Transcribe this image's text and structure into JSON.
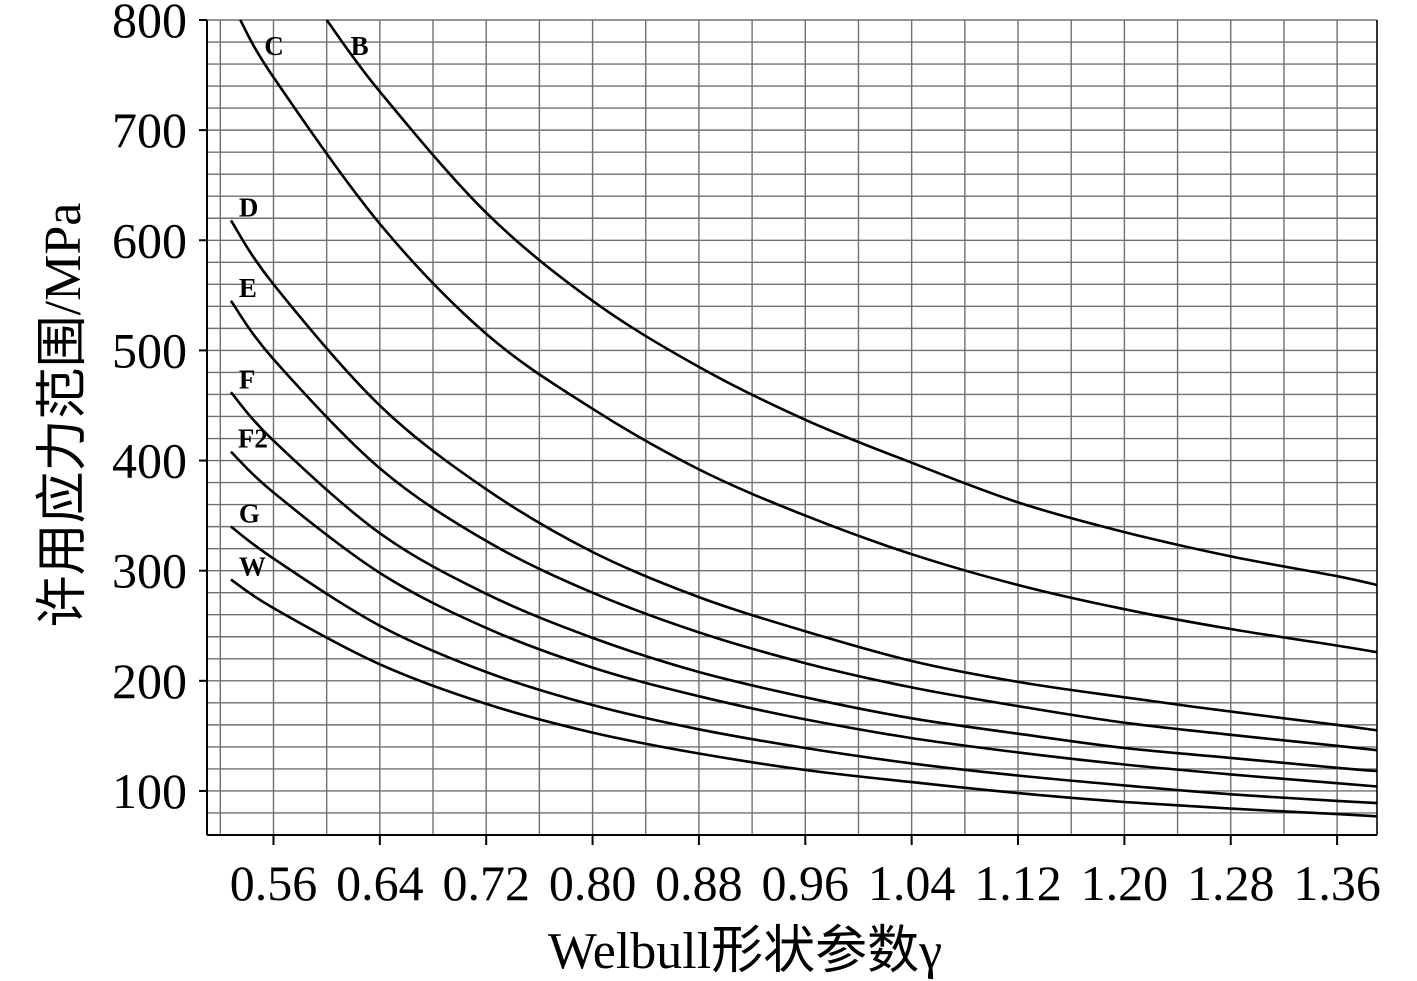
{
  "chart_data": {
    "type": "line",
    "xlabel": "Welbull形状参数γ",
    "ylabel": "许用应力范围/MPa",
    "xlim": [
      0.51,
      1.39
    ],
    "ylim": [
      60,
      800
    ],
    "x_ticks": [
      "0.56",
      "0.64",
      "0.72",
      "0.80",
      "0.88",
      "0.96",
      "1.04",
      "1.12",
      "1.20",
      "1.28",
      "1.36"
    ],
    "y_ticks": [
      "100",
      "200",
      "300",
      "400",
      "500",
      "600",
      "700",
      "800"
    ],
    "grid": true,
    "series": [
      {
        "name": "B",
        "x": [
          0.6,
          0.64,
          0.72,
          0.8,
          0.88,
          0.96,
          1.04,
          1.12,
          1.2,
          1.28,
          1.36,
          1.39
        ],
        "values": [
          800,
          735,
          625,
          545,
          485,
          437,
          398,
          362,
          335,
          313,
          295,
          287
        ]
      },
      {
        "name": "C",
        "x": [
          0.535,
          0.56,
          0.64,
          0.72,
          0.8,
          0.88,
          0.96,
          1.04,
          1.12,
          1.2,
          1.28,
          1.36,
          1.39
        ],
        "values": [
          800,
          748,
          615,
          515,
          447,
          392,
          350,
          315,
          287,
          265,
          247,
          232,
          226
        ]
      },
      {
        "name": "D",
        "x": [
          0.528,
          0.56,
          0.64,
          0.72,
          0.8,
          0.88,
          0.96,
          1.04,
          1.12,
          1.2,
          1.28,
          1.36,
          1.39
        ],
        "values": [
          618,
          560,
          450,
          374,
          317,
          276,
          245,
          218,
          199,
          185,
          172,
          160,
          155
        ]
      },
      {
        "name": "E",
        "x": [
          0.528,
          0.56,
          0.64,
          0.72,
          0.8,
          0.88,
          0.96,
          1.04,
          1.12,
          1.2,
          1.28,
          1.36,
          1.39
        ],
        "values": [
          545,
          492,
          393,
          327,
          280,
          244,
          216,
          194,
          177,
          162,
          151,
          141,
          137
        ]
      },
      {
        "name": "F",
        "x": [
          0.528,
          0.56,
          0.64,
          0.72,
          0.8,
          0.88,
          0.96,
          1.04,
          1.12,
          1.2,
          1.28,
          1.36,
          1.39
        ],
        "values": [
          462,
          418,
          334,
          279,
          239,
          208,
          185,
          166,
          152,
          139,
          130,
          121,
          118
        ]
      },
      {
        "name": "F2",
        "x": [
          0.528,
          0.56,
          0.64,
          0.72,
          0.8,
          0.88,
          0.96,
          1.04,
          1.12,
          1.2,
          1.28,
          1.36,
          1.39
        ],
        "values": [
          408,
          371,
          298,
          248,
          212,
          186,
          165,
          148,
          135,
          124,
          115,
          107,
          104
        ]
      },
      {
        "name": "G",
        "x": [
          0.528,
          0.56,
          0.64,
          0.72,
          0.8,
          0.88,
          0.96,
          1.04,
          1.12,
          1.2,
          1.28,
          1.36,
          1.39
        ],
        "values": [
          340,
          311,
          250,
          208,
          178,
          156,
          139,
          125,
          114,
          105,
          97,
          91,
          89
        ]
      },
      {
        "name": "W",
        "x": [
          0.528,
          0.56,
          0.64,
          0.72,
          0.8,
          0.88,
          0.96,
          1.04,
          1.12,
          1.2,
          1.28,
          1.36,
          1.39
        ],
        "values": [
          292,
          266,
          215,
          179,
          153,
          134,
          119,
          108,
          98,
          90,
          84,
          79,
          77
        ]
      }
    ]
  }
}
